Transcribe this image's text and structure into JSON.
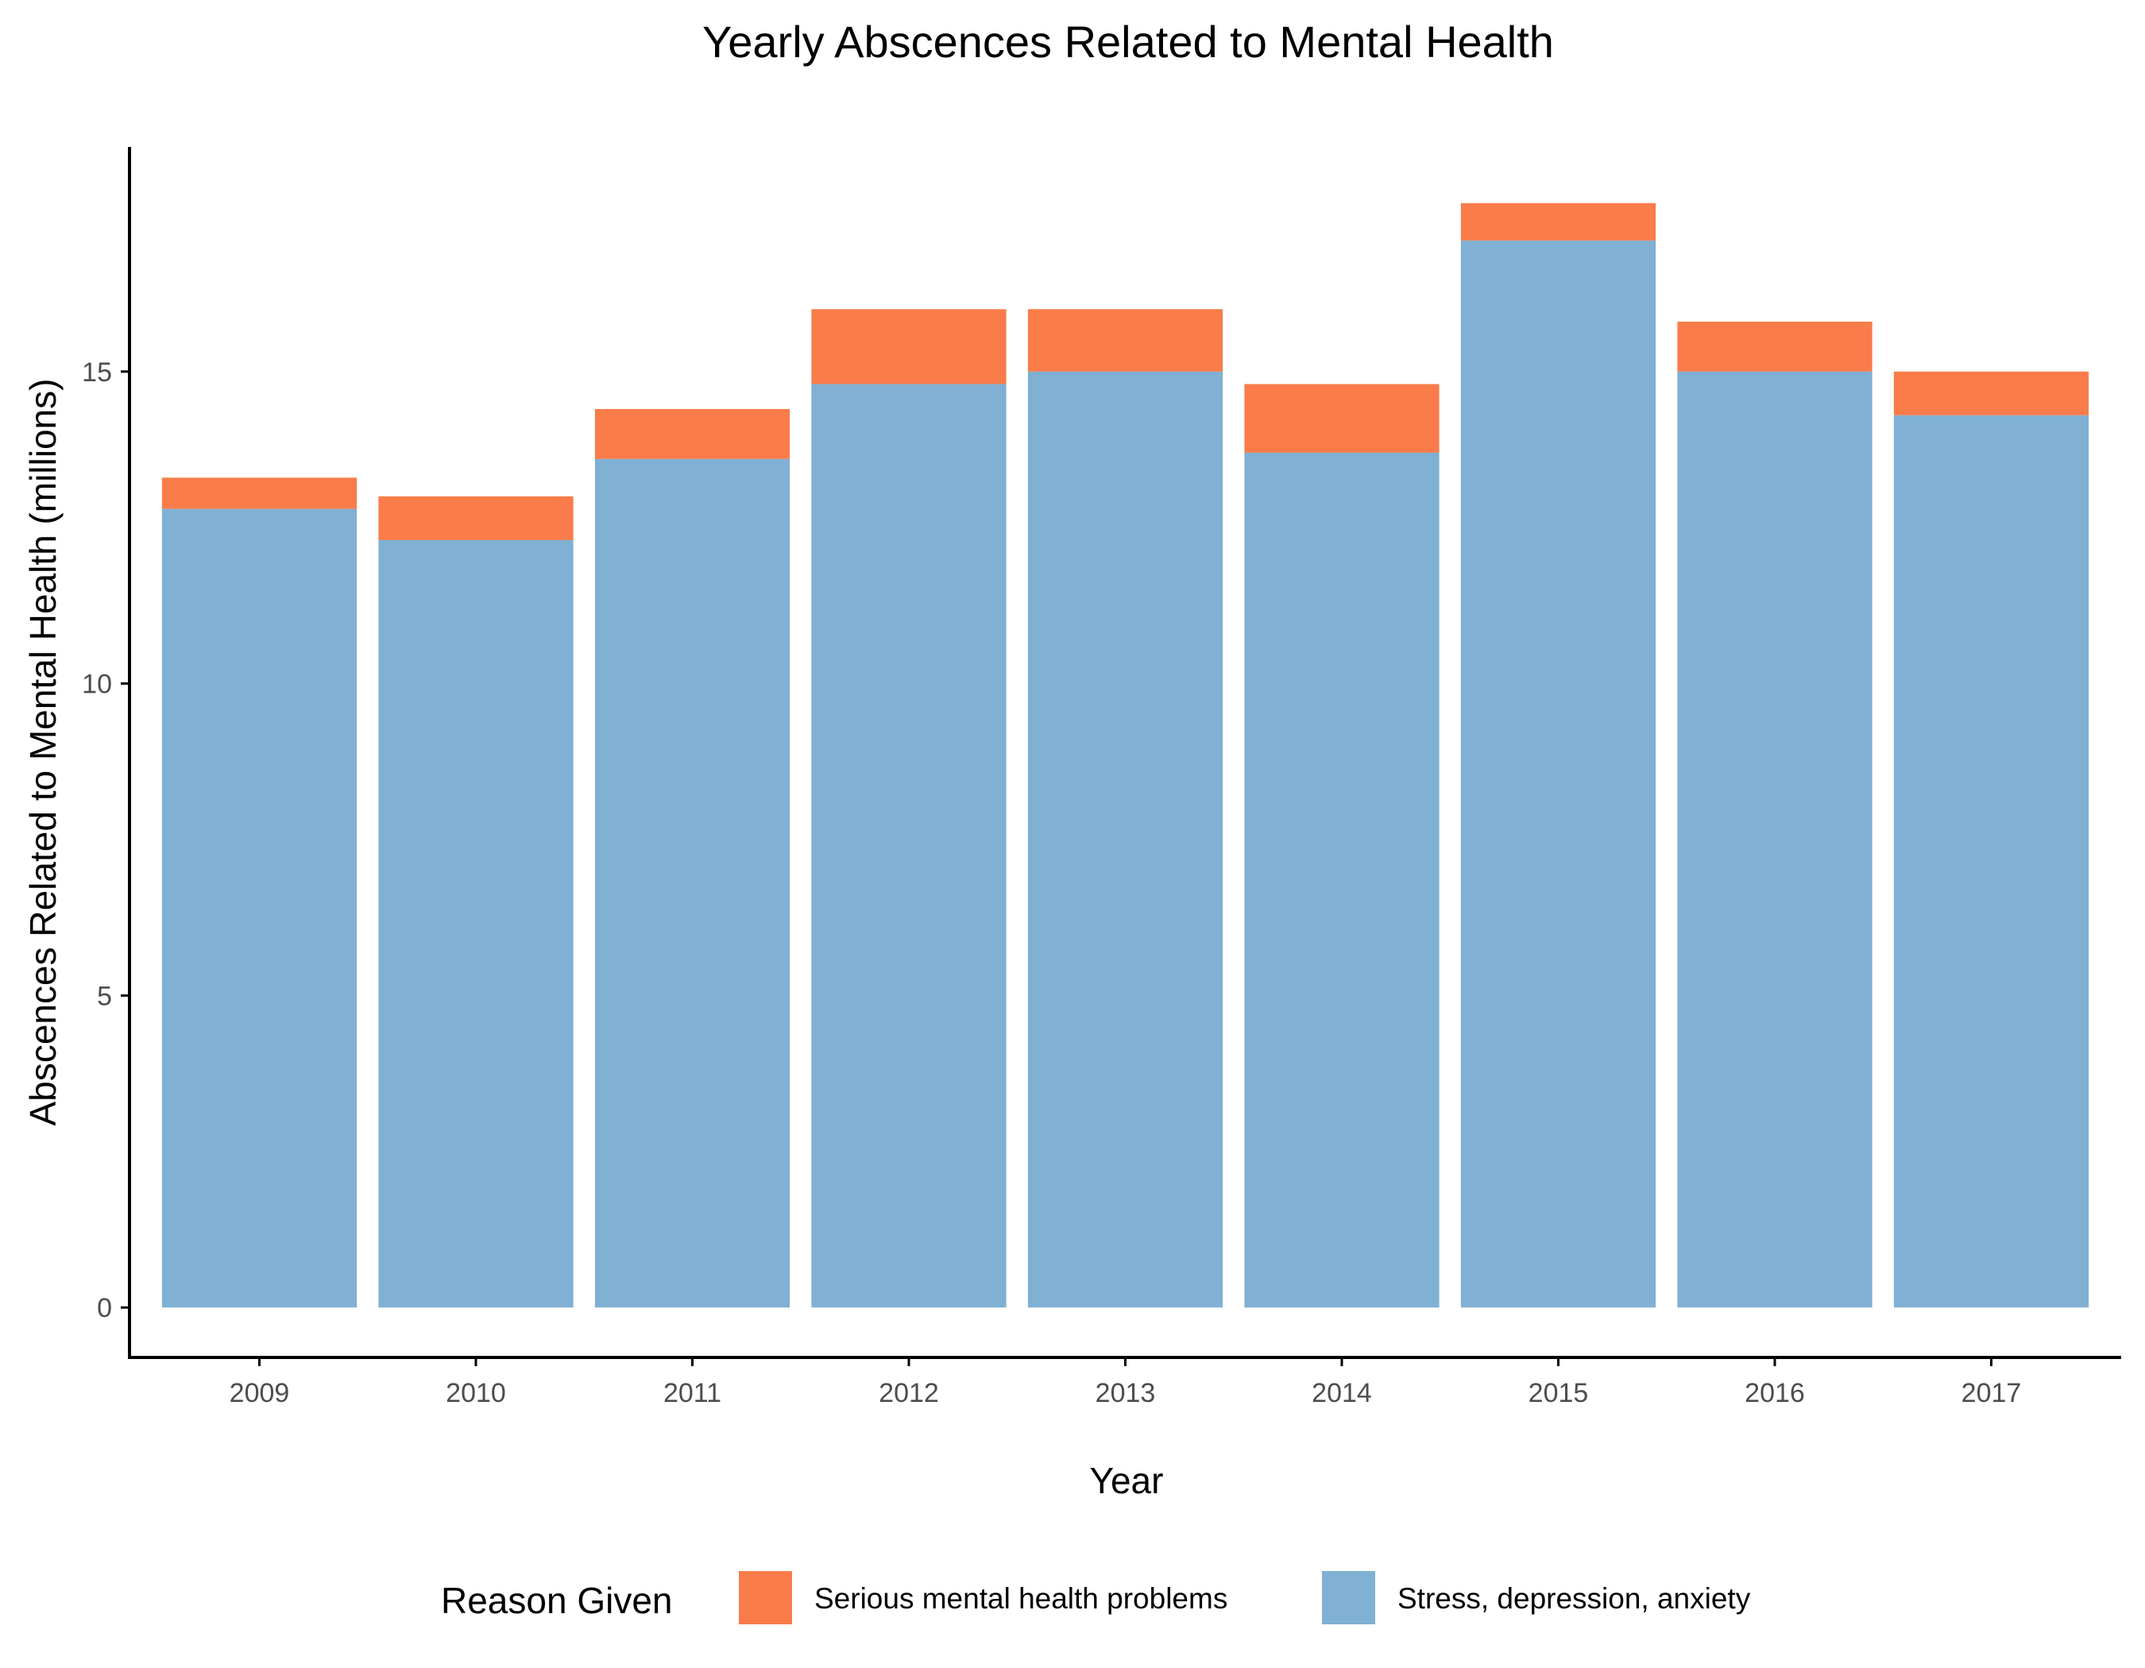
{
  "chart_data": {
    "type": "bar",
    "stacked": true,
    "title": "Yearly Abscences Related to Mental Health",
    "xlabel": "Year",
    "ylabel": "Abscences Related to Mental Health (millions)",
    "categories": [
      "2009",
      "2010",
      "2011",
      "2012",
      "2013",
      "2014",
      "2015",
      "2016",
      "2017"
    ],
    "ylim": [
      -0.8,
      18.6
    ],
    "yticks": [
      0,
      5,
      10,
      15
    ],
    "grid": false,
    "legend": {
      "title": "Reason Given",
      "position": "bottom"
    },
    "series": [
      {
        "name": "Stress, depression, anxiety",
        "color": "#80b0d3",
        "values": [
          12.8,
          12.3,
          13.6,
          14.8,
          15.0,
          13.7,
          17.1,
          15.0,
          14.3
        ]
      },
      {
        "name": "Serious mental health problems",
        "color": "#f97c4a",
        "values": [
          0.5,
          0.7,
          0.8,
          1.2,
          1.0,
          1.1,
          0.6,
          0.8,
          0.7
        ]
      }
    ],
    "legend_order": [
      1,
      0
    ]
  }
}
